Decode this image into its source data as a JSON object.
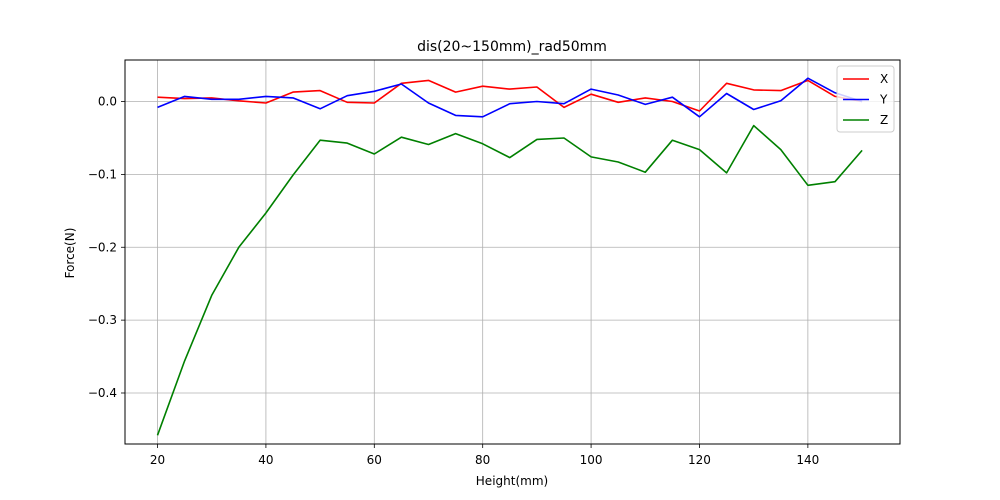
{
  "chart_data": {
    "type": "line",
    "title": "dis(20~150mm)_rad50mm",
    "xlabel": "Height(mm)",
    "ylabel": "Force(N)",
    "xlim": [
      14,
      157
    ],
    "ylim": [
      -0.47,
      0.057
    ],
    "xticks": [
      20,
      40,
      60,
      80,
      100,
      120,
      140
    ],
    "xtick_labels": [
      "20",
      "40",
      "60",
      "80",
      "100",
      "120",
      "140"
    ],
    "yticks": [
      0.0,
      -0.1,
      -0.2,
      -0.3,
      -0.4
    ],
    "ytick_labels": [
      "0.0",
      "−0.1",
      "−0.2",
      "−0.3",
      "−0.4"
    ],
    "grid": true,
    "legend_position": "top-right",
    "x": [
      20,
      25,
      30,
      35,
      40,
      45,
      50,
      55,
      60,
      65,
      70,
      75,
      80,
      85,
      90,
      95,
      100,
      105,
      110,
      115,
      120,
      125,
      130,
      135,
      140,
      145,
      150
    ],
    "series": [
      {
        "name": "X",
        "color": "#ff0000",
        "values": [
          0.006,
          0.004,
          0.005,
          0.001,
          -0.002,
          0.013,
          0.015,
          -0.001,
          -0.002,
          0.025,
          0.029,
          0.013,
          0.021,
          0.017,
          0.02,
          -0.008,
          0.01,
          -0.001,
          0.005,
          0.0,
          -0.013,
          0.025,
          0.016,
          0.015,
          0.029,
          0.007,
          0.0
        ]
      },
      {
        "name": "Y",
        "color": "#0000ff",
        "values": [
          -0.008,
          0.007,
          0.003,
          0.003,
          0.007,
          0.005,
          -0.01,
          0.008,
          0.014,
          0.024,
          -0.002,
          -0.019,
          -0.021,
          -0.003,
          0.0,
          -0.003,
          0.017,
          0.009,
          -0.004,
          0.006,
          -0.021,
          0.011,
          -0.011,
          0.001,
          0.032,
          0.012,
          0.0
        ]
      },
      {
        "name": "Z",
        "color": "#008000",
        "values": [
          -0.458,
          -0.356,
          -0.266,
          -0.2,
          -0.153,
          -0.101,
          -0.053,
          -0.057,
          -0.072,
          -0.049,
          -0.059,
          -0.044,
          -0.058,
          -0.077,
          -0.052,
          -0.05,
          -0.076,
          -0.083,
          -0.097,
          -0.053,
          -0.066,
          -0.098,
          -0.033,
          -0.066,
          -0.115,
          -0.11,
          -0.067
        ]
      }
    ]
  }
}
